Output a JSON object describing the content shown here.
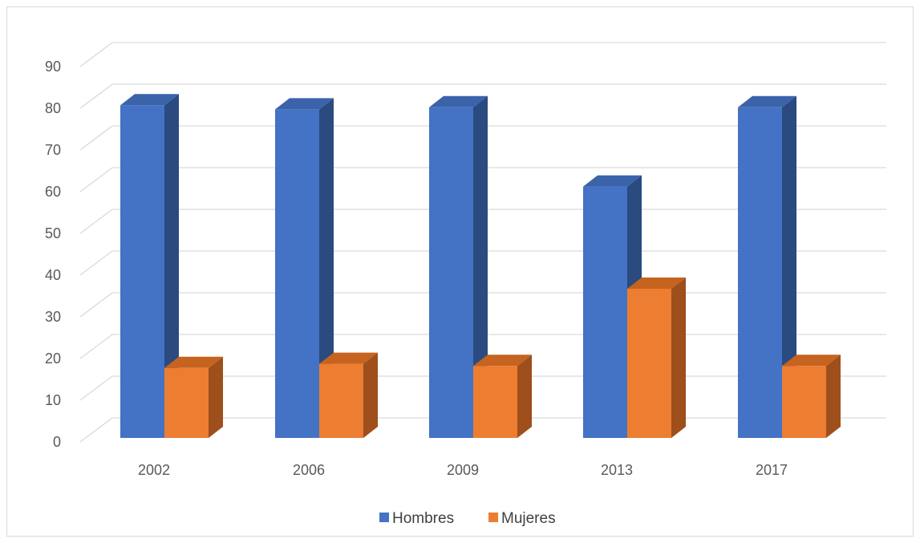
{
  "chart_data": {
    "type": "bar",
    "style": "3d-clustered-column",
    "categories": [
      "2002",
      "2006",
      "2009",
      "2013",
      "2017"
    ],
    "series": [
      {
        "name": "Hombres",
        "values": [
          81.5,
          80.5,
          81,
          62,
          81
        ],
        "color": "#4472C4",
        "side_color": "#2B4A80",
        "top_color": "#3A63AA"
      },
      {
        "name": "Mujeres",
        "values": [
          18.5,
          19.5,
          19,
          37.5,
          19
        ],
        "color": "#ED7D31",
        "side_color": "#9E4F1C",
        "top_color": "#C5631F"
      }
    ],
    "yticks": [
      "0",
      "10",
      "20",
      "30",
      "40",
      "50",
      "60",
      "70",
      "80",
      "90"
    ],
    "ylim": [
      0,
      90
    ],
    "grid": true,
    "legend_position": "bottom",
    "title": "",
    "xlabel": "",
    "ylabel": ""
  }
}
